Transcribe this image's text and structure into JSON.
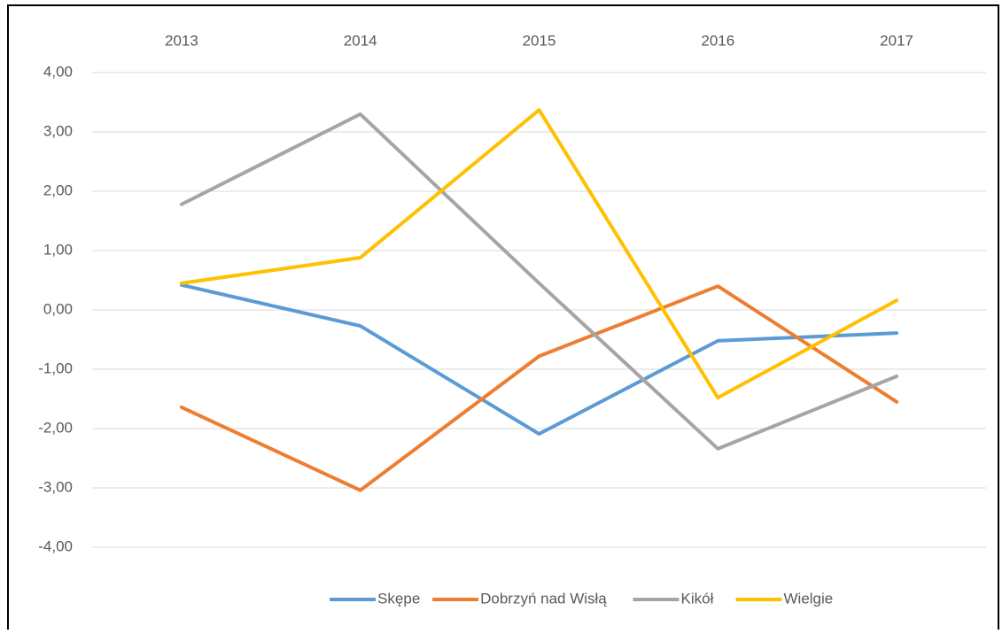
{
  "chart_data": {
    "type": "line",
    "categories": [
      "2013",
      "2014",
      "2015",
      "2016",
      "2017"
    ],
    "series": [
      {
        "name": "Skępe",
        "color": "#5b9bd5",
        "values": [
          0.42,
          -0.27,
          -2.09,
          -0.52,
          -0.39
        ]
      },
      {
        "name": "Dobrzyń nad Wisłą",
        "color": "#ed7d31",
        "values": [
          -1.64,
          -3.04,
          -0.78,
          0.4,
          -1.55
        ]
      },
      {
        "name": "Kikół",
        "color": "#a5a5a5",
        "values": [
          1.78,
          3.3,
          0.45,
          -2.34,
          -1.12
        ]
      },
      {
        "name": "Wielgie",
        "color": "#ffc000",
        "values": [
          0.45,
          0.88,
          3.37,
          -1.48,
          0.16
        ]
      }
    ],
    "ylim": [
      -4,
      4
    ],
    "yticks": [
      {
        "value": -4,
        "label": "-4,00"
      },
      {
        "value": -3,
        "label": "-3,00"
      },
      {
        "value": -2,
        "label": "-2,00"
      },
      {
        "value": -1,
        "label": "-1,00"
      },
      {
        "value": 0,
        "label": "0,00"
      },
      {
        "value": 1,
        "label": "1,00"
      },
      {
        "value": 2,
        "label": "2,00"
      },
      {
        "value": 3,
        "label": "3,00"
      },
      {
        "value": 4,
        "label": "4,00"
      }
    ],
    "grid": true,
    "legend": "bottom"
  }
}
